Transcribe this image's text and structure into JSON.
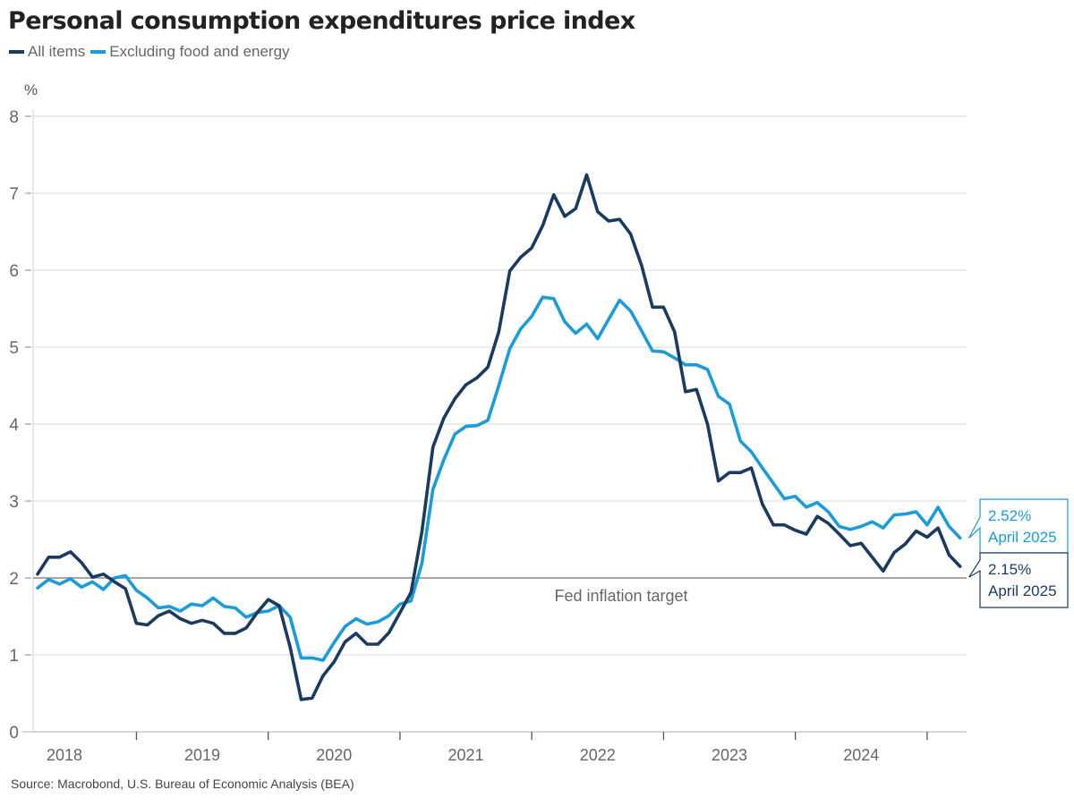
{
  "title": "Personal consumption expenditures price index",
  "source": "Source: Macrobond, U.S. Bureau of Economic Analysis (BEA)",
  "colors": {
    "all_items": "#1b3a5f",
    "core": "#1b9bd7",
    "target_line": "#a6a6a6",
    "grid": "#d9d9d9",
    "text": "#666666"
  },
  "chart_data": {
    "type": "line",
    "title": "Personal consumption expenditures price index",
    "xlabel": "",
    "ylabel": "%",
    "ylim": [
      0,
      8
    ],
    "yticks": [
      0,
      1,
      2,
      3,
      4,
      5,
      6,
      7,
      8
    ],
    "grid": true,
    "legend_position": "top-left",
    "x_start": "2018-04",
    "x_end": "2025-04",
    "frequency": "monthly",
    "year_labels": [
      "2018",
      "2019",
      "2020",
      "2021",
      "2022",
      "2023",
      "2024"
    ],
    "series": [
      {
        "name": "All items",
        "key": "all_items",
        "values": [
          2.05,
          2.27,
          2.27,
          2.34,
          2.2,
          2.01,
          2.05,
          1.95,
          1.86,
          1.41,
          1.39,
          1.51,
          1.57,
          1.47,
          1.41,
          1.45,
          1.41,
          1.28,
          1.28,
          1.35,
          1.55,
          1.72,
          1.64,
          1.1,
          0.42,
          0.44,
          0.73,
          0.91,
          1.17,
          1.28,
          1.14,
          1.14,
          1.29,
          1.55,
          1.81,
          2.6,
          3.7,
          4.08,
          4.33,
          4.51,
          4.6,
          4.74,
          5.2,
          5.99,
          6.17,
          6.29,
          6.58,
          6.98,
          6.7,
          6.8,
          7.24,
          6.76,
          6.64,
          6.66,
          6.47,
          6.06,
          5.52,
          5.52,
          5.2,
          4.42,
          4.45,
          4.0,
          3.26,
          3.37,
          3.37,
          3.43,
          2.96,
          2.69,
          2.69,
          2.62,
          2.57,
          2.8,
          2.71,
          2.57,
          2.42,
          2.45,
          2.27,
          2.09,
          2.33,
          2.44,
          2.61,
          2.53,
          2.65,
          2.3,
          2.15
        ]
      },
      {
        "name": "Excluding food and energy",
        "key": "core",
        "values": [
          1.87,
          1.98,
          1.92,
          1.99,
          1.88,
          1.95,
          1.85,
          2.0,
          2.03,
          1.84,
          1.74,
          1.61,
          1.63,
          1.57,
          1.66,
          1.64,
          1.74,
          1.63,
          1.61,
          1.49,
          1.55,
          1.57,
          1.64,
          1.49,
          0.96,
          0.96,
          0.93,
          1.16,
          1.37,
          1.47,
          1.4,
          1.43,
          1.51,
          1.66,
          1.7,
          2.19,
          3.15,
          3.54,
          3.87,
          3.97,
          3.98,
          4.05,
          4.5,
          4.98,
          5.24,
          5.4,
          5.65,
          5.63,
          5.33,
          5.18,
          5.3,
          5.11,
          5.36,
          5.61,
          5.47,
          5.21,
          4.95,
          4.94,
          4.86,
          4.77,
          4.77,
          4.71,
          4.36,
          4.26,
          3.78,
          3.64,
          3.43,
          3.23,
          3.03,
          3.06,
          2.92,
          2.98,
          2.86,
          2.67,
          2.63,
          2.67,
          2.73,
          2.65,
          2.82,
          2.83,
          2.86,
          2.69,
          2.92,
          2.67,
          2.52
        ]
      }
    ],
    "reference_line": {
      "value": 2,
      "label": "Fed inflation target"
    },
    "annotations": [
      {
        "series": "core",
        "value_label": "2.52%",
        "date_label": "April 2025"
      },
      {
        "series": "all_items",
        "value_label": "2.15%",
        "date_label": "April 2025"
      }
    ]
  }
}
